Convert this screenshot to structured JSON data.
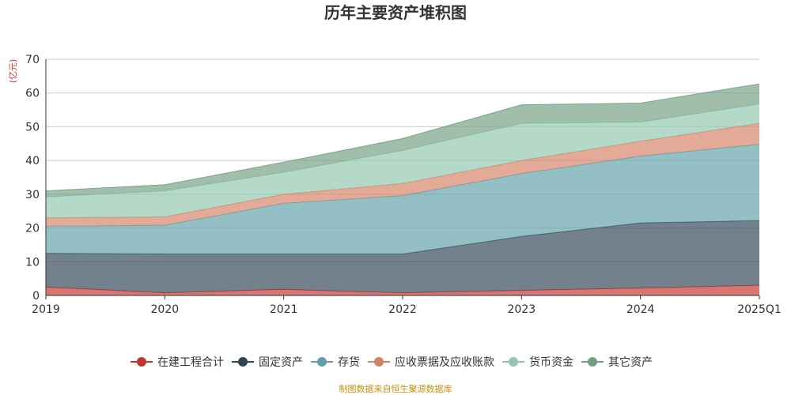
{
  "chart_data": {
    "type": "area",
    "title": "历年主要资产堆积图",
    "ylabel": "亿元",
    "x": [
      "2019",
      "2020",
      "2021",
      "2022",
      "2023",
      "2024",
      "2025Q1"
    ],
    "ylim": [
      0,
      70
    ],
    "yticks": [
      0,
      10,
      20,
      30,
      40,
      50,
      60,
      70
    ],
    "stacked": true,
    "grid": true,
    "legend_position": "bottom",
    "series": [
      {
        "name": "在建工程合计",
        "color": "#c23531",
        "values": [
          2.5,
          0.8,
          1.8,
          0.8,
          1.5,
          2.2,
          3.0
        ]
      },
      {
        "name": "固定资产",
        "color": "#2f4554",
        "values": [
          10.0,
          11.5,
          10.5,
          11.5,
          16.0,
          19.3,
          19.2
        ]
      },
      {
        "name": "存货",
        "color": "#61a0a8",
        "values": [
          8.0,
          8.5,
          15.0,
          17.3,
          18.6,
          19.8,
          22.6
        ]
      },
      {
        "name": "应收票据及应收账款",
        "color": "#d48265",
        "values": [
          2.5,
          2.5,
          2.7,
          3.6,
          3.9,
          4.4,
          6.2
        ]
      },
      {
        "name": "货币资金",
        "color": "#91c7ae",
        "values": [
          6.2,
          7.7,
          6.5,
          9.8,
          11.0,
          5.7,
          5.7
        ]
      },
      {
        "name": "其它资产",
        "color": "#749f83",
        "values": [
          1.8,
          1.8,
          3.0,
          3.5,
          5.5,
          5.6,
          6.0
        ]
      }
    ]
  },
  "footer": {
    "source": "制图数据来自恒生聚源数据库"
  }
}
